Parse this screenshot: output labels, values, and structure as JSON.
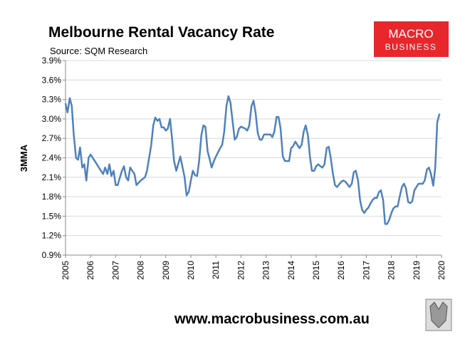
{
  "chart_data": {
    "type": "line",
    "title": "Melbourne Rental Vacancy Rate",
    "subtitle": "Source: SQM Research",
    "y_label": "3MMA",
    "logo": {
      "line1": "MACRO",
      "line2": "BUSINESS"
    },
    "footer": "www.macrobusiness.com.au",
    "color": "#4f81bd",
    "grid": true,
    "xlim": [
      2005,
      2020
    ],
    "xticks": [
      2005,
      2006,
      2007,
      2008,
      2009,
      2010,
      2011,
      2012,
      2013,
      2014,
      2015,
      2016,
      2017,
      2018,
      2019,
      2020
    ],
    "ylim": [
      0.9,
      3.9
    ],
    "yticks": [
      {
        "value": 0.9,
        "label": "0.9%"
      },
      {
        "value": 1.2,
        "label": "1.2%"
      },
      {
        "value": 1.5,
        "label": "1.5%"
      },
      {
        "value": 1.8,
        "label": "1.8%"
      },
      {
        "value": 2.1,
        "label": "2.1%"
      },
      {
        "value": 2.4,
        "label": "2.4%"
      },
      {
        "value": 2.7,
        "label": "2.7%"
      },
      {
        "value": 3.0,
        "label": "3.0%"
      },
      {
        "value": 3.3,
        "label": "3.3%"
      },
      {
        "value": 3.6,
        "label": "3.6%"
      },
      {
        "value": 3.9,
        "label": "3.9%"
      }
    ],
    "x": [
      2005.0,
      2005.08,
      2005.17,
      2005.25,
      2005.33,
      2005.42,
      2005.5,
      2005.58,
      2005.67,
      2005.75,
      2005.83,
      2005.92,
      2006.0,
      2006.17,
      2006.33,
      2006.5,
      2006.58,
      2006.67,
      2006.75,
      2006.83,
      2006.92,
      2007.0,
      2007.08,
      2007.25,
      2007.33,
      2007.42,
      2007.5,
      2007.58,
      2007.75,
      2007.83,
      2008.0,
      2008.17,
      2008.25,
      2008.42,
      2008.5,
      2008.58,
      2008.67,
      2008.75,
      2008.83,
      2008.92,
      2009.0,
      2009.08,
      2009.17,
      2009.25,
      2009.33,
      2009.42,
      2009.58,
      2009.67,
      2009.75,
      2009.83,
      2009.92,
      2010.0,
      2010.08,
      2010.17,
      2010.25,
      2010.33,
      2010.42,
      2010.5,
      2010.58,
      2010.67,
      2010.75,
      2010.83,
      2010.92,
      2011.0,
      2011.17,
      2011.25,
      2011.33,
      2011.42,
      2011.5,
      2011.58,
      2011.67,
      2011.75,
      2011.83,
      2011.92,
      2012.0,
      2012.17,
      2012.25,
      2012.33,
      2012.42,
      2012.5,
      2012.58,
      2012.67,
      2012.75,
      2012.83,
      2012.92,
      2013.0,
      2013.17,
      2013.25,
      2013.33,
      2013.42,
      2013.5,
      2013.58,
      2013.67,
      2013.75,
      2013.92,
      2014.0,
      2014.08,
      2014.17,
      2014.25,
      2014.33,
      2014.42,
      2014.5,
      2014.58,
      2014.67,
      2014.75,
      2014.83,
      2014.92,
      2015.0,
      2015.08,
      2015.17,
      2015.25,
      2015.33,
      2015.42,
      2015.5,
      2015.58,
      2015.67,
      2015.75,
      2015.83,
      2016.0,
      2016.08,
      2016.17,
      2016.33,
      2016.42,
      2016.5,
      2016.58,
      2016.67,
      2016.75,
      2016.83,
      2016.92,
      2017.0,
      2017.08,
      2017.17,
      2017.25,
      2017.33,
      2017.42,
      2017.5,
      2017.58,
      2017.67,
      2017.75,
      2017.83,
      2017.92,
      2018.0,
      2018.08,
      2018.17,
      2018.25,
      2018.33,
      2018.42,
      2018.5,
      2018.58,
      2018.67,
      2018.75,
      2018.83,
      2018.92,
      2019.0,
      2019.08,
      2019.25,
      2019.33,
      2019.42,
      2019.5,
      2019.58,
      2019.67,
      2019.75,
      2019.83,
      2019.92
    ],
    "values": [
      3.24,
      3.1,
      3.32,
      3.2,
      2.75,
      2.4,
      2.37,
      2.56,
      2.25,
      2.3,
      2.05,
      2.4,
      2.45,
      2.35,
      2.25,
      2.15,
      2.25,
      2.15,
      2.3,
      2.12,
      2.2,
      1.98,
      1.98,
      2.2,
      2.27,
      2.1,
      2.05,
      2.25,
      2.15,
      1.98,
      2.05,
      2.1,
      2.2,
      2.6,
      2.9,
      3.02,
      2.97,
      3.0,
      2.87,
      2.87,
      2.82,
      2.85,
      3.0,
      2.7,
      2.35,
      2.2,
      2.42,
      2.25,
      2.1,
      1.82,
      1.88,
      2.05,
      2.2,
      2.13,
      2.12,
      2.35,
      2.75,
      2.9,
      2.88,
      2.5,
      2.38,
      2.25,
      2.35,
      2.42,
      2.55,
      2.6,
      2.8,
      3.2,
      3.35,
      3.25,
      2.95,
      2.68,
      2.72,
      2.85,
      2.88,
      2.85,
      2.82,
      2.9,
      3.2,
      3.28,
      3.1,
      2.78,
      2.68,
      2.68,
      2.76,
      2.76,
      2.76,
      2.72,
      2.8,
      3.03,
      3.03,
      2.85,
      2.42,
      2.35,
      2.35,
      2.55,
      2.58,
      2.65,
      2.6,
      2.55,
      2.6,
      2.8,
      2.9,
      2.75,
      2.42,
      2.2,
      2.2,
      2.27,
      2.3,
      2.27,
      2.25,
      2.3,
      2.55,
      2.57,
      2.4,
      2.15,
      1.98,
      1.95,
      2.03,
      2.05,
      2.03,
      1.95,
      2.0,
      2.18,
      2.2,
      2.05,
      1.75,
      1.6,
      1.55,
      1.6,
      1.63,
      1.7,
      1.75,
      1.78,
      1.78,
      1.87,
      1.9,
      1.75,
      1.38,
      1.38,
      1.45,
      1.55,
      1.62,
      1.65,
      1.65,
      1.8,
      1.95,
      2.0,
      1.93,
      1.72,
      1.7,
      1.73,
      1.9,
      1.95,
      2.0,
      2.0,
      2.05,
      2.22,
      2.25,
      2.15,
      1.97,
      2.25,
      2.95,
      3.08
    ]
  }
}
